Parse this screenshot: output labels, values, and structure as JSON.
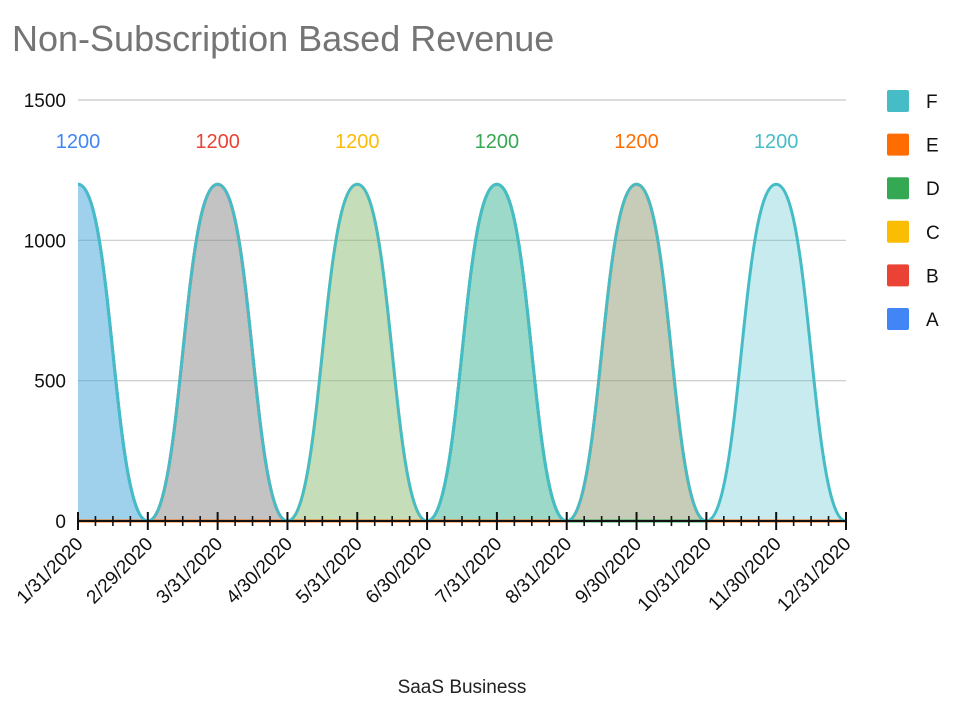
{
  "chart_data": {
    "type": "area",
    "title": "Non-Subscription Based Revenue",
    "xlabel": "SaaS Business",
    "ylabel": "",
    "ylim": [
      0,
      1500
    ],
    "yticks": [
      "0",
      "500",
      "1000",
      "1500"
    ],
    "x": [
      "1/31/2020",
      "2/29/2020",
      "3/31/2020",
      "4/30/2020",
      "5/31/2020",
      "6/30/2020",
      "7/31/2020",
      "8/31/2020",
      "9/30/2020",
      "10/31/2020",
      "11/30/2020",
      "12/31/2020"
    ],
    "grid": true,
    "legend_position": "right",
    "series": [
      {
        "name": "A",
        "color": "#4285f4",
        "values": [
          1200,
          0,
          0,
          0,
          0,
          0,
          0,
          0,
          0,
          0,
          0,
          0
        ],
        "data_labels": [
          "1200",
          "",
          "",
          "",
          "",
          "",
          "",
          "",
          "",
          "",
          "",
          ""
        ]
      },
      {
        "name": "B",
        "color": "#ea4335",
        "values": [
          0,
          0,
          1200,
          0,
          0,
          0,
          0,
          0,
          0,
          0,
          0,
          0
        ],
        "data_labels": [
          "",
          "",
          "1200",
          "",
          "",
          "",
          "",
          "",
          "",
          "",
          "",
          ""
        ]
      },
      {
        "name": "C",
        "color": "#fbbc04",
        "values": [
          0,
          0,
          0,
          0,
          1200,
          0,
          0,
          0,
          0,
          0,
          0,
          0
        ],
        "data_labels": [
          "",
          "",
          "",
          "",
          "1200",
          "",
          "",
          "",
          "",
          "",
          "",
          ""
        ]
      },
      {
        "name": "D",
        "color": "#34a853",
        "values": [
          0,
          0,
          0,
          0,
          0,
          0,
          1200,
          0,
          0,
          0,
          0,
          0
        ],
        "data_labels": [
          "",
          "",
          "",
          "",
          "",
          "",
          "1200",
          "",
          "",
          "",
          "",
          ""
        ]
      },
      {
        "name": "E",
        "color": "#ff6d01",
        "values": [
          0,
          0,
          0,
          0,
          0,
          0,
          0,
          0,
          1200,
          0,
          0,
          0
        ],
        "data_labels": [
          "",
          "",
          "",
          "",
          "",
          "",
          "",
          "",
          "1200",
          "",
          "",
          ""
        ]
      },
      {
        "name": "F",
        "color": "#46bdc6",
        "values": [
          1200,
          0,
          1200,
          0,
          1200,
          0,
          1200,
          0,
          1200,
          0,
          1200,
          0
        ],
        "data_labels": [
          "",
          "",
          "",
          "",
          "",
          "",
          "",
          "",
          "",
          "",
          "1200",
          ""
        ]
      }
    ]
  }
}
